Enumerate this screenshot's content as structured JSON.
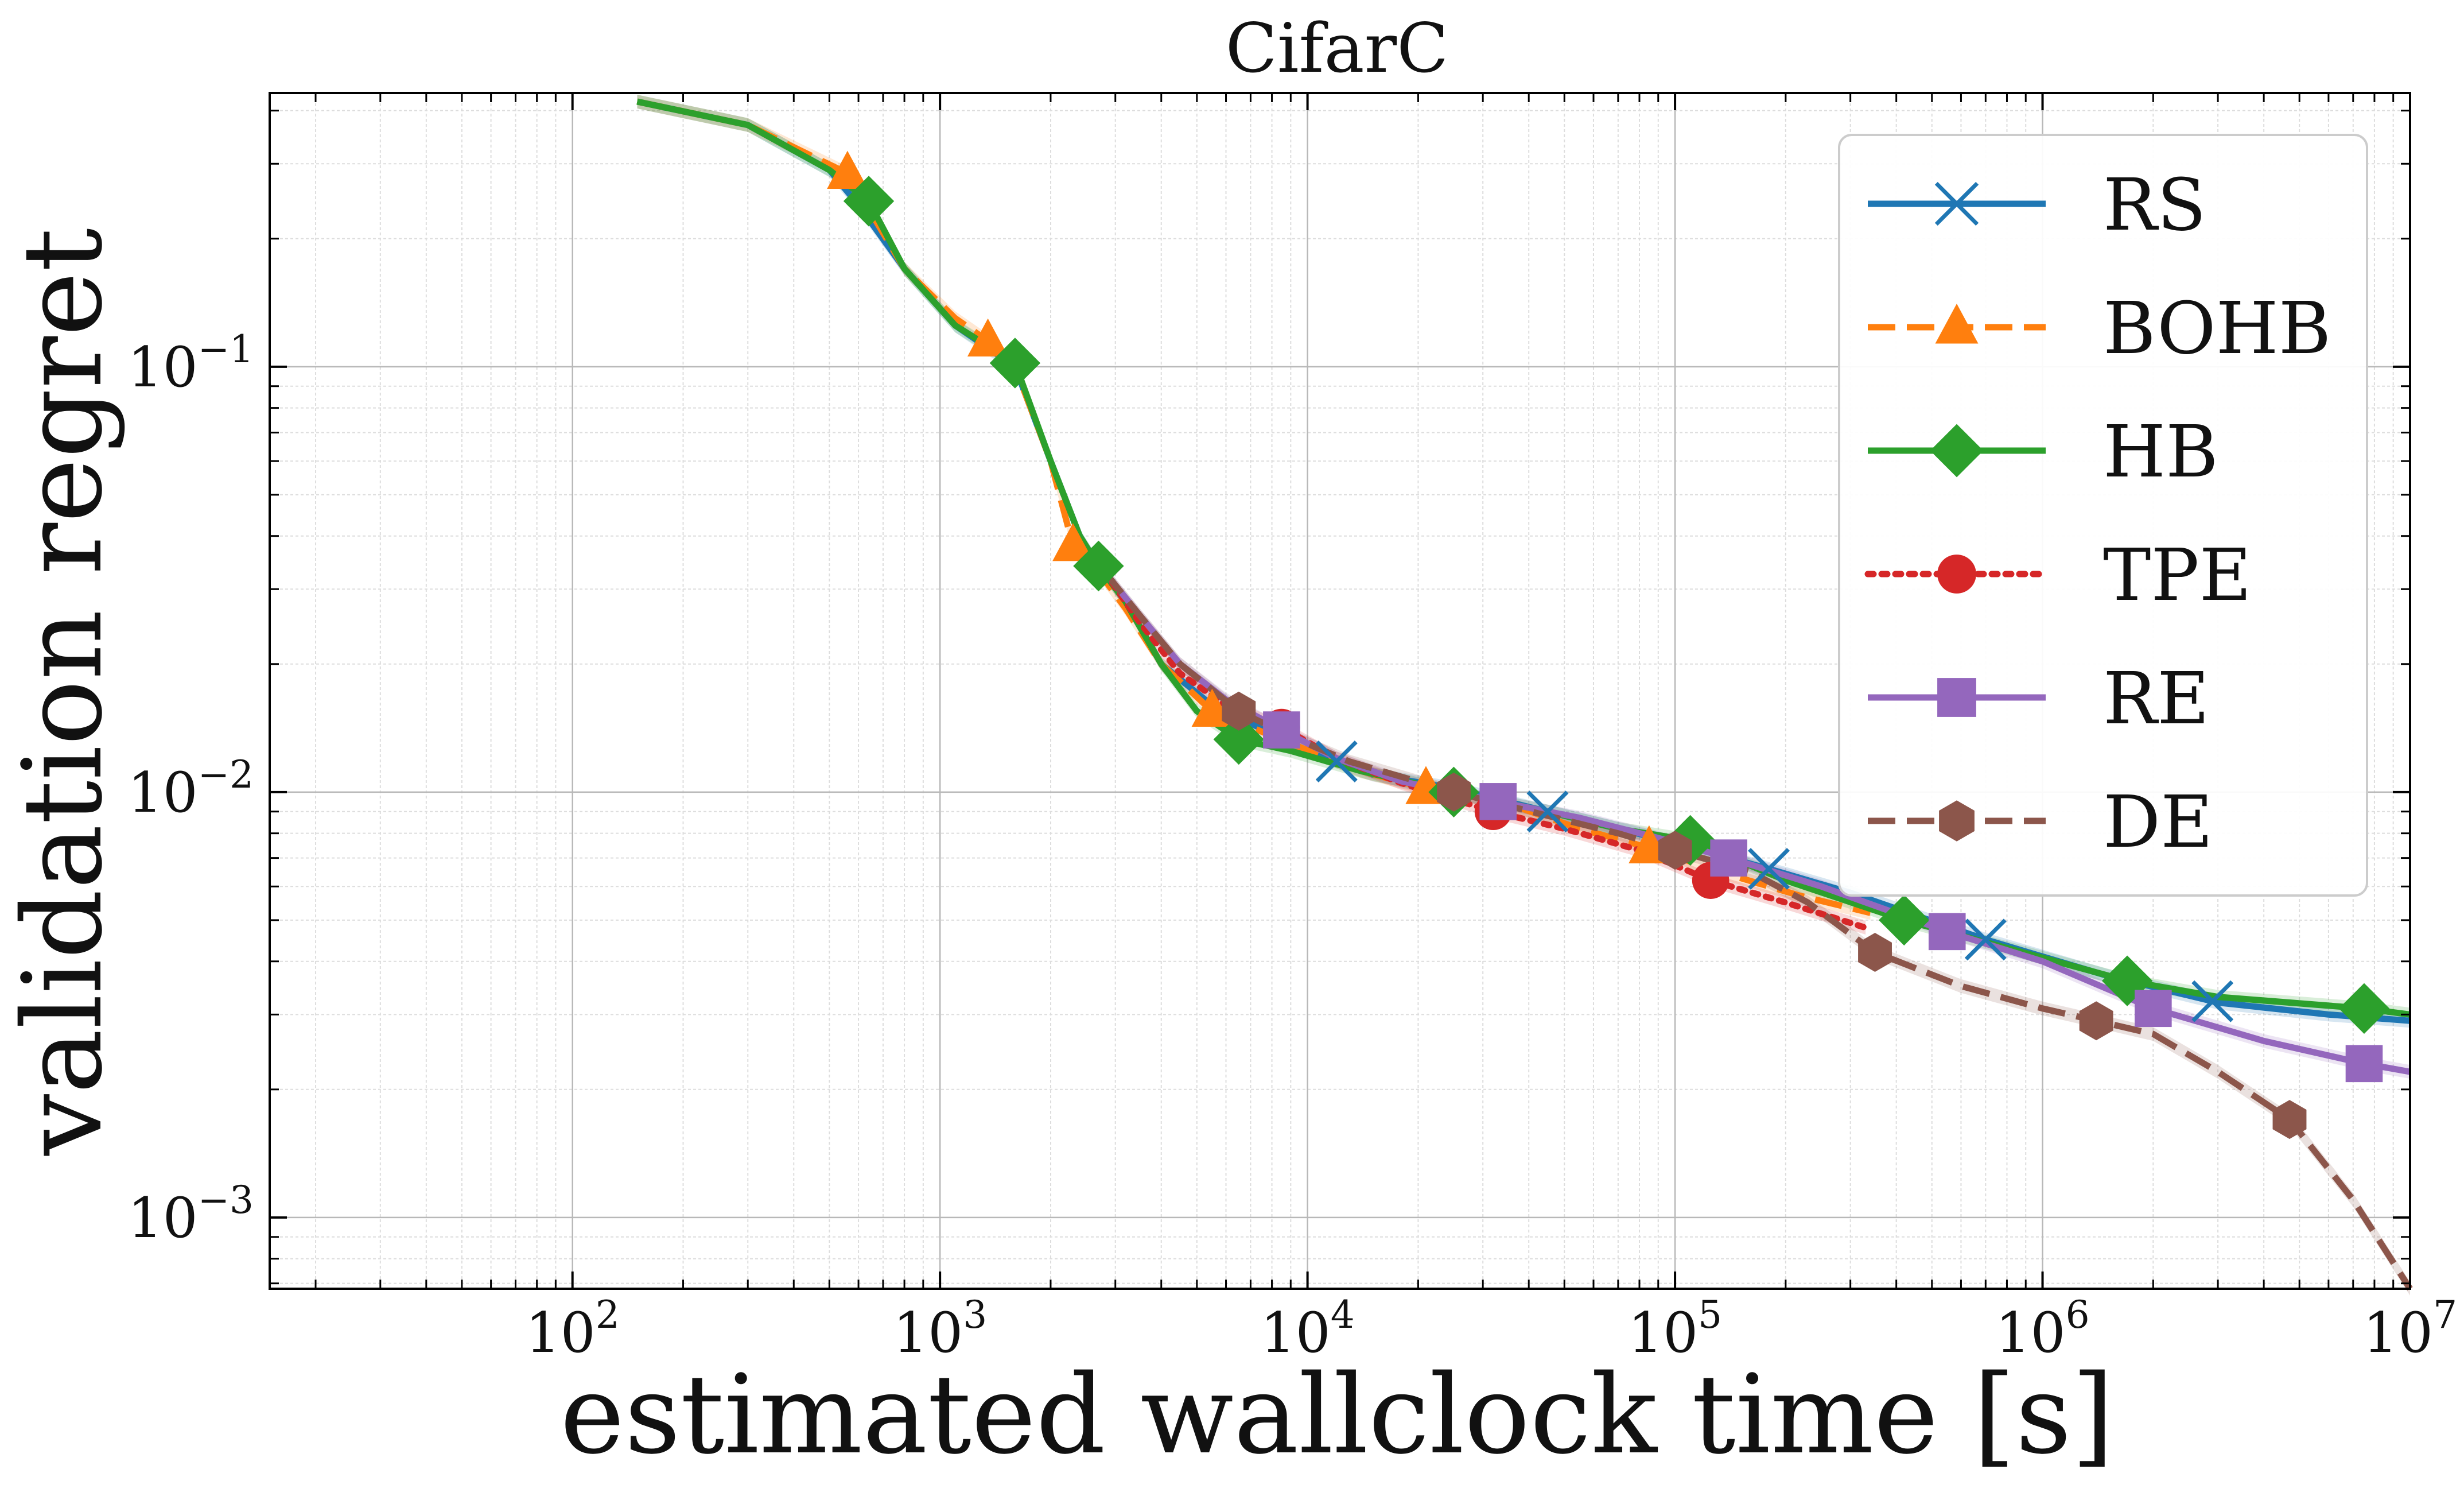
{
  "chart_data": {
    "type": "line",
    "title": "CifarC",
    "xlabel": "estimated wallclock time [s]",
    "ylabel": "validation regret",
    "xscale": "log",
    "yscale": "log",
    "xlim": [
      15,
      10000000
    ],
    "ylim": [
      0.00068,
      0.44
    ],
    "x_ticks": [
      {
        "value": 100,
        "base": "10",
        "exp": "2"
      },
      {
        "value": 1000,
        "base": "10",
        "exp": "3"
      },
      {
        "value": 10000,
        "base": "10",
        "exp": "4"
      },
      {
        "value": 100000,
        "base": "10",
        "exp": "5"
      },
      {
        "value": 1000000,
        "base": "10",
        "exp": "6"
      },
      {
        "value": 10000000,
        "base": "10",
        "exp": "7"
      }
    ],
    "y_ticks": [
      {
        "value": 0.001,
        "base": "10",
        "exp": "−3"
      },
      {
        "value": 0.01,
        "base": "10",
        "exp": "−2"
      },
      {
        "value": 0.1,
        "base": "10",
        "exp": "−1"
      }
    ],
    "grid": true,
    "legend_position": "top-right",
    "series": [
      {
        "name": "RS",
        "color": "#1f77b4",
        "marker": "x",
        "dash": "solid",
        "x": [
          150,
          300,
          500,
          600,
          800,
          1100,
          1600,
          2000,
          2400,
          2700,
          3200,
          4000,
          5500,
          7000,
          10000,
          15000,
          25000,
          45000,
          70000,
          100000,
          180000,
          300000,
          700000,
          1500000,
          3000000,
          6000000,
          10000000
        ],
        "y": [
          0.42,
          0.37,
          0.29,
          0.24,
          0.17,
          0.125,
          0.1,
          0.06,
          0.04,
          0.034,
          0.028,
          0.02,
          0.016,
          0.0145,
          0.0125,
          0.011,
          0.0102,
          0.009,
          0.0082,
          0.0076,
          0.0066,
          0.0058,
          0.0045,
          0.0037,
          0.0032,
          0.003,
          0.0029
        ],
        "markers_at": [
          12000,
          45000,
          180000,
          700000,
          2900000
        ]
      },
      {
        "name": "BOHB",
        "color": "#ff7f0e",
        "marker": "triangle",
        "dash": "dashed",
        "x": [
          150,
          300,
          560,
          800,
          1100,
          1350,
          1600,
          2000,
          2300,
          2700,
          3200,
          4000,
          5500,
          9000,
          14000,
          21000,
          35000,
          55000,
          85000,
          140000,
          220000,
          340000
        ],
        "y": [
          0.42,
          0.37,
          0.285,
          0.17,
          0.13,
          0.115,
          0.1,
          0.06,
          0.038,
          0.033,
          0.027,
          0.02,
          0.0155,
          0.013,
          0.0112,
          0.0102,
          0.0094,
          0.0082,
          0.0074,
          0.0064,
          0.0057,
          0.0052
        ],
        "markers_at": [
          560,
          1350,
          2300,
          5500,
          21000,
          85000
        ]
      },
      {
        "name": "HB",
        "color": "#2ca02c",
        "marker": "diamond",
        "dash": "solid",
        "x": [
          150,
          300,
          500,
          640,
          800,
          1100,
          1600,
          2000,
          2400,
          2700,
          3200,
          4000,
          5000,
          6500,
          9000,
          14000,
          25000,
          45000,
          70000,
          110000,
          200000,
          420000,
          800000,
          1700000,
          3000000,
          7500000,
          10000000
        ],
        "y": [
          0.42,
          0.37,
          0.29,
          0.245,
          0.17,
          0.125,
          0.102,
          0.06,
          0.04,
          0.034,
          0.028,
          0.02,
          0.0155,
          0.0133,
          0.0125,
          0.0112,
          0.01,
          0.009,
          0.0082,
          0.0077,
          0.0062,
          0.005,
          0.0043,
          0.0036,
          0.0033,
          0.0031,
          0.003
        ],
        "markers_at": [
          640,
          1600,
          2700,
          6500,
          25000,
          110000,
          420000,
          1700000,
          7500000
        ]
      },
      {
        "name": "TPE",
        "color": "#d62728",
        "marker": "circle",
        "dash": "dotted",
        "x": [
          2800,
          3500,
          4500,
          6000,
          8500,
          12000,
          18000,
          32000,
          50000,
          80000,
          125000,
          200000,
          330000
        ],
        "y": [
          0.033,
          0.025,
          0.019,
          0.016,
          0.0142,
          0.012,
          0.0105,
          0.009,
          0.0082,
          0.0073,
          0.0062,
          0.0055,
          0.0048
        ],
        "markers_at": [
          8500,
          32000,
          125000
        ]
      },
      {
        "name": "RE",
        "color": "#9467bd",
        "marker": "square",
        "dash": "solid",
        "x": [
          2800,
          3500,
          4500,
          6000,
          8500,
          12000,
          18000,
          33000,
          55000,
          90000,
          140000,
          250000,
          550000,
          1000000,
          2000000,
          4000000,
          7500000,
          10000000
        ],
        "y": [
          0.033,
          0.026,
          0.02,
          0.0165,
          0.014,
          0.012,
          0.0106,
          0.0095,
          0.0087,
          0.0078,
          0.007,
          0.006,
          0.0047,
          0.004,
          0.0031,
          0.0026,
          0.0023,
          0.0022
        ],
        "markers_at": [
          8500,
          33000,
          140000,
          550000,
          2000000,
          7500000
        ]
      },
      {
        "name": "DE",
        "color": "#8c564b",
        "marker": "hexagon",
        "dash": "dashed",
        "x": [
          2800,
          3500,
          4500,
          6500,
          9000,
          13000,
          25000,
          45000,
          70000,
          100000,
          160000,
          230000,
          350000,
          600000,
          1000000,
          1400000,
          2000000,
          3000000,
          4700000,
          7000000,
          10000000
        ],
        "y": [
          0.033,
          0.026,
          0.02,
          0.0155,
          0.0135,
          0.0118,
          0.01,
          0.0088,
          0.008,
          0.0073,
          0.0065,
          0.0055,
          0.0042,
          0.0035,
          0.0031,
          0.0029,
          0.0027,
          0.0022,
          0.0017,
          0.0011,
          0.00068
        ],
        "markers_at": [
          6500,
          25000,
          100000,
          350000,
          1400000,
          4700000
        ]
      }
    ]
  }
}
